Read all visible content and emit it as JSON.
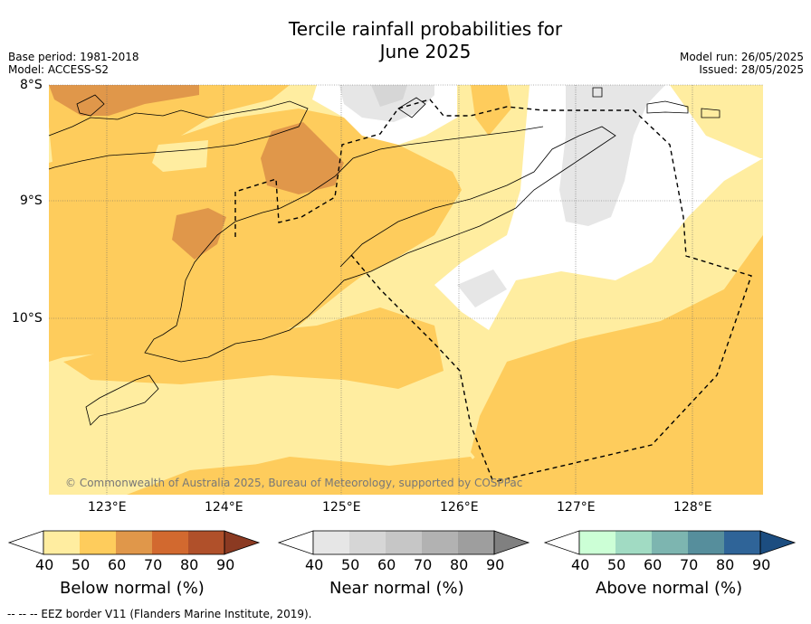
{
  "title": "Tercile rainfall probabilities for\nJune 2025",
  "title_line1": "Tercile rainfall probabilities for",
  "title_line2": "June 2025",
  "base_period": "Base period: 1981-2018",
  "model": "Model: ACCESS-S2",
  "model_run": "Model run: 26/05/2025",
  "issued": "Issued: 28/05/2025",
  "map": {
    "lat_labels": [
      "8°S",
      "9°S",
      "10°S"
    ],
    "lon_labels": [
      "123°E",
      "124°E",
      "125°E",
      "126°E",
      "127°E",
      "128°E"
    ],
    "credit": "© Commonwealth of Australia 2025, Bureau of Meteorology, supported by COSPPac"
  },
  "colorbars": [
    {
      "title": "Below normal (%)",
      "ticks": [
        "40",
        "50",
        "60",
        "70",
        "80",
        "90"
      ],
      "colors": [
        "#ffffff",
        "#ffeda0",
        "#fecc5c",
        "#e0974a",
        "#d2692f",
        "#b0502a",
        "#8b3a22"
      ]
    },
    {
      "title": "Near normal (%)",
      "ticks": [
        "40",
        "50",
        "60",
        "70",
        "80",
        "90"
      ],
      "colors": [
        "#ffffff",
        "#e6e6e6",
        "#d6d6d6",
        "#c6c6c6",
        "#b2b2b2",
        "#9e9e9e",
        "#808080"
      ]
    },
    {
      "title": "Above normal (%)",
      "ticks": [
        "40",
        "50",
        "60",
        "70",
        "80",
        "90"
      ],
      "colors": [
        "#ffffff",
        "#ccffd6",
        "#a1dbc3",
        "#7db5b0",
        "#568e9c",
        "#2f6498",
        "#1c4d80"
      ]
    }
  ],
  "footer": "-- -- -- EEZ border V11 (Flanders Marine Institute, 2019)."
}
